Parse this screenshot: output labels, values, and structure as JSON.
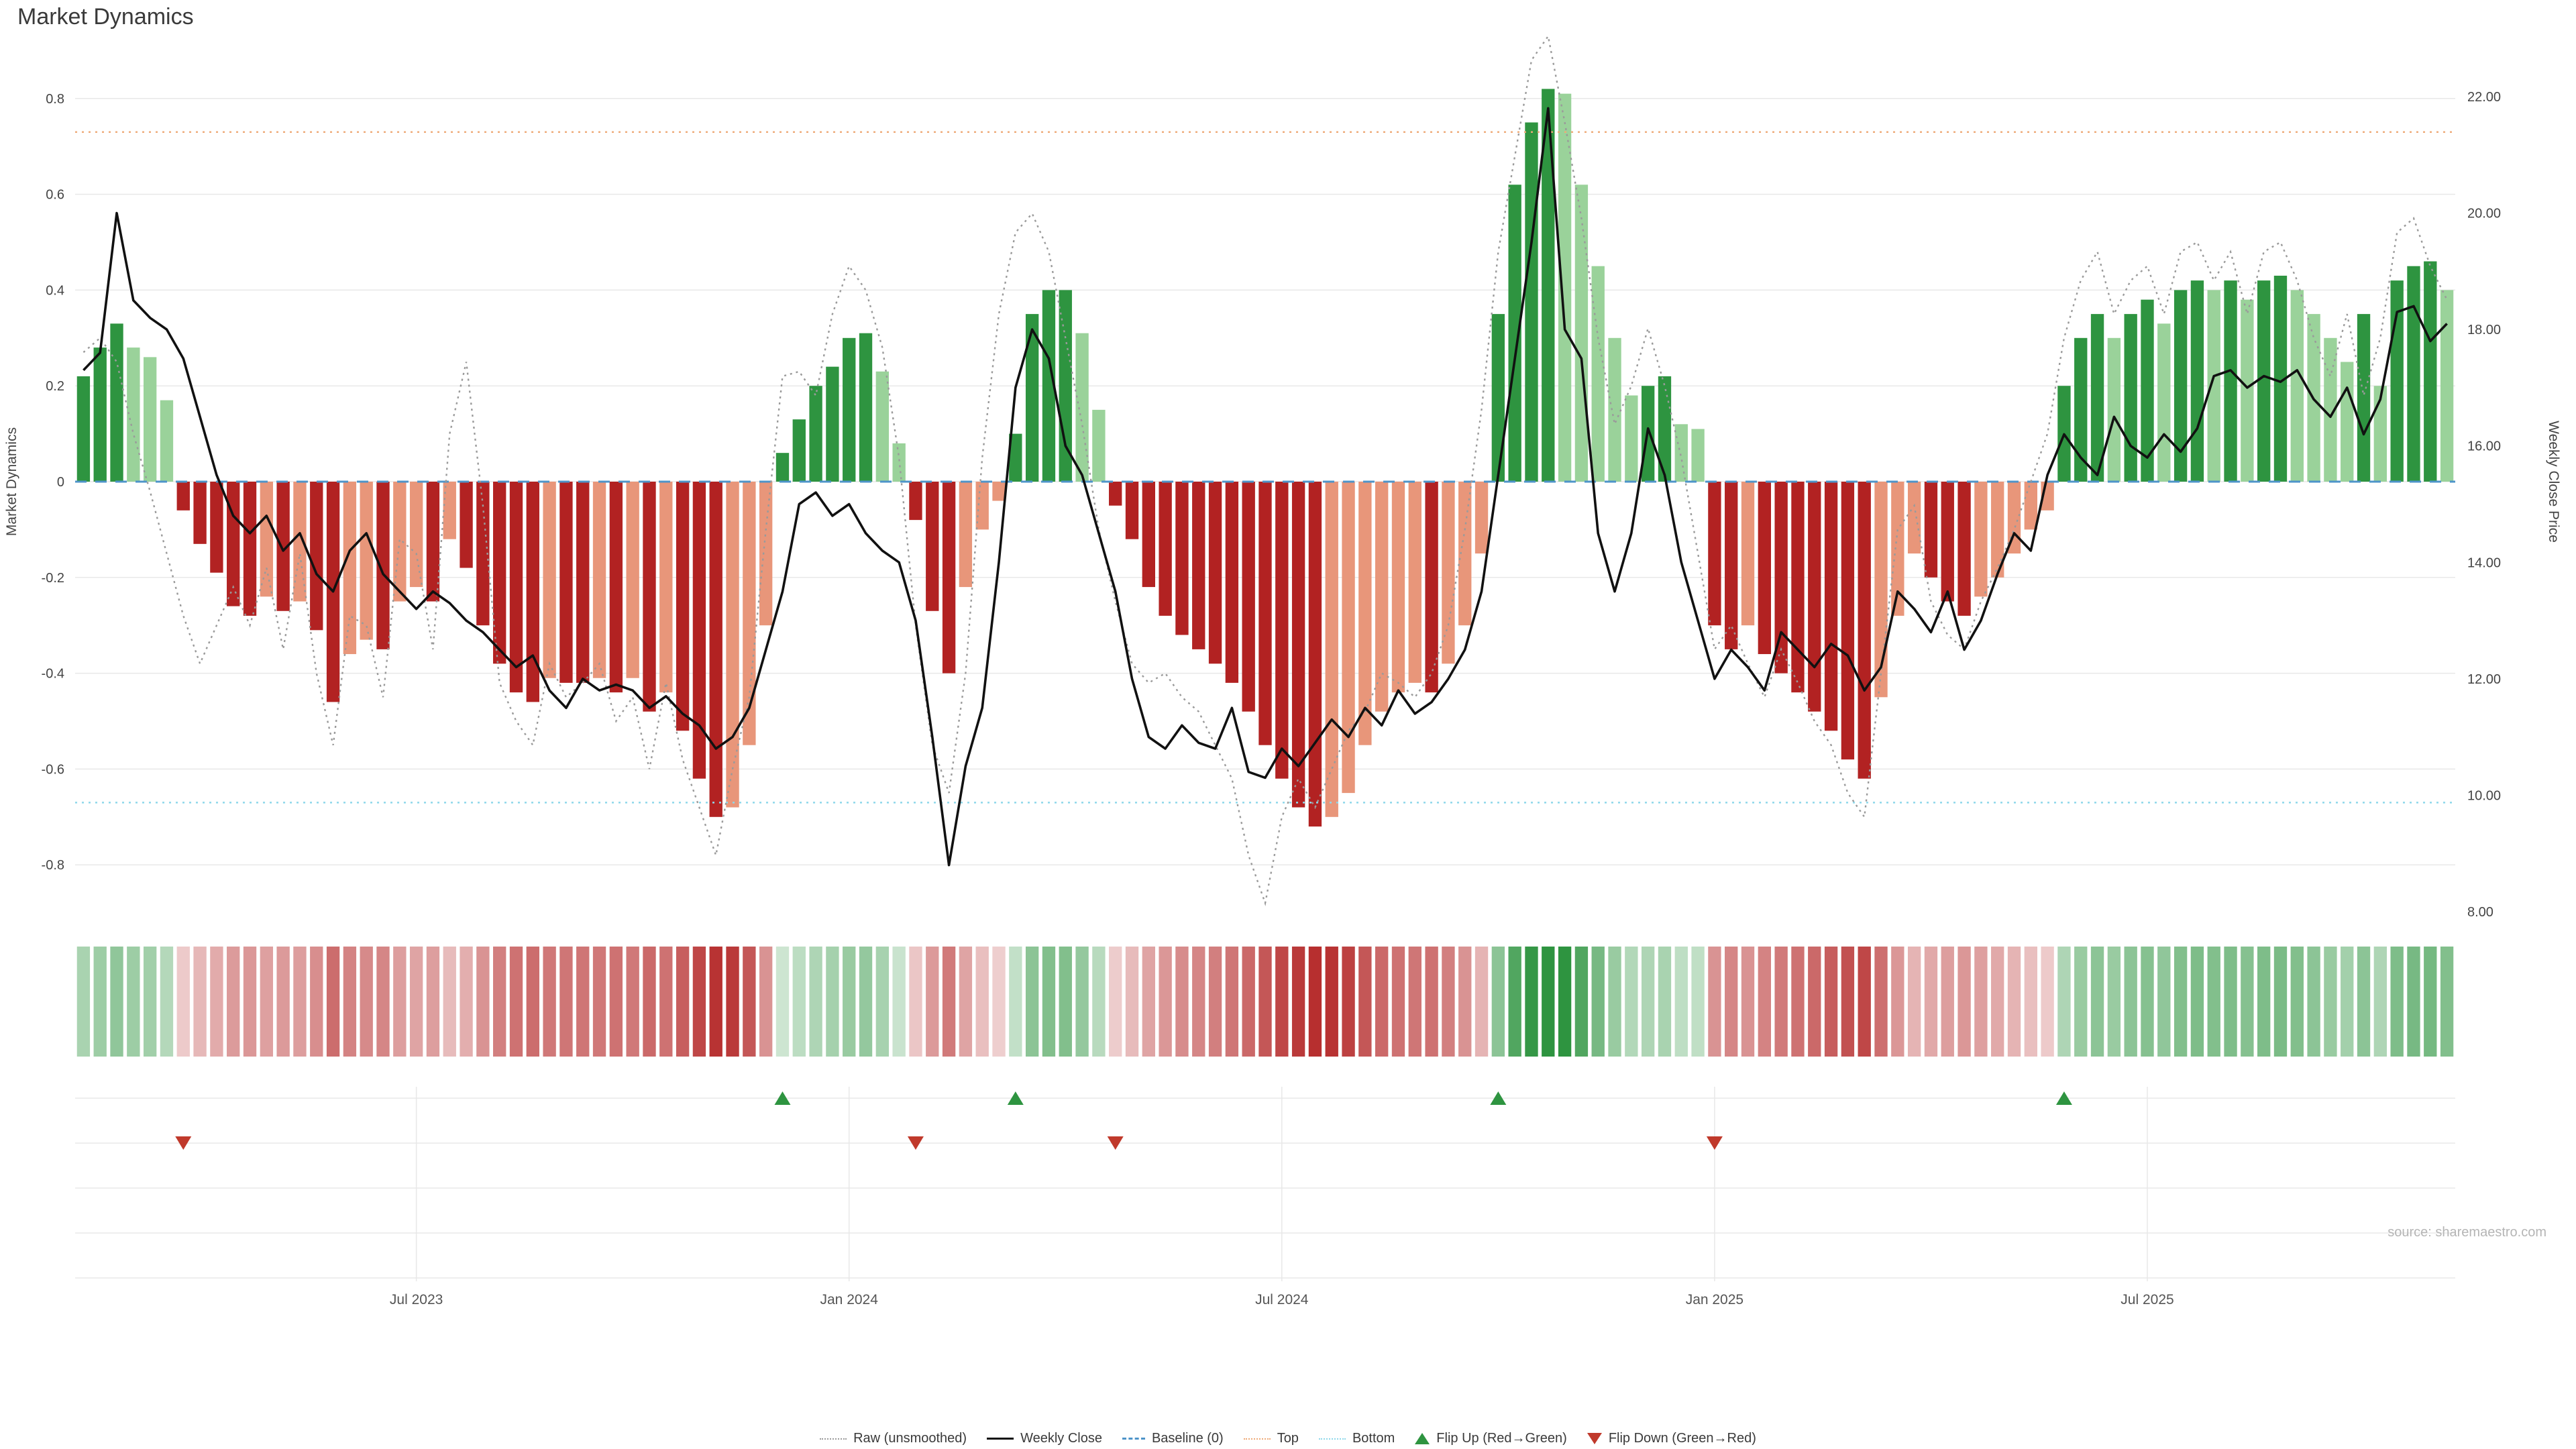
{
  "page": {
    "title": "Market Dynamics",
    "source": "source: sharemaestro.com"
  },
  "colors": {
    "green_dark": "#2e9440",
    "green_light": "#9ad29a",
    "red_dark": "#b22222",
    "red_light": "#e8967a",
    "close": "#111111",
    "raw": "#9a9a9a",
    "baseline": "#4e94c9",
    "top": "#eeaa77",
    "bottom": "#8ed8ea",
    "grid": "#e8e8e8",
    "flip_up": "#2e9440",
    "flip_down": "#c0392b"
  },
  "legend": {
    "items": [
      {
        "label": "Raw (unsmoothed)"
      },
      {
        "label": "Weekly Close"
      },
      {
        "label": "Baseline (0)"
      },
      {
        "label": "Top"
      },
      {
        "label": "Bottom"
      },
      {
        "label": "Flip Up (Red→Green)"
      },
      {
        "label": "Flip Down (Green→Red)"
      }
    ]
  },
  "chart_data": {
    "type": "bar+line",
    "title": "Market Dynamics",
    "grid": "horizontal",
    "left_axis": {
      "title": "Market Dynamics",
      "ticks": [
        "0.8",
        "0.6",
        "0.4",
        "0.2",
        "0",
        "-0.2",
        "-0.4",
        "-0.6",
        "-0.8"
      ],
      "range": [
        -0.9,
        0.9
      ]
    },
    "right_axis": {
      "title": "Weekly Close Price",
      "ticks": [
        "22.00",
        "20.00",
        "18.00",
        "16.00",
        "14.00",
        "12.00",
        "10.00",
        "8.00"
      ],
      "range": [
        8,
        22.5
      ]
    },
    "x_ticks": [
      {
        "label": "Jul 2023",
        "week": 20
      },
      {
        "label": "Jan 2024",
        "week": 46
      },
      {
        "label": "Jul 2024",
        "week": 72
      },
      {
        "label": "Jan 2025",
        "week": 98
      },
      {
        "label": "Jul 2025",
        "week": 124
      }
    ],
    "reference_lines": {
      "baseline": 0,
      "top": 0.73,
      "bottom": -0.67
    },
    "series": [
      {
        "name": "Market Dynamics",
        "type": "bar",
        "axis": "left",
        "values": [
          0.22,
          0.28,
          0.33,
          0.28,
          0.26,
          0.17,
          -0.06,
          -0.13,
          -0.19,
          -0.26,
          -0.28,
          -0.24,
          -0.27,
          -0.25,
          -0.31,
          -0.46,
          -0.36,
          -0.33,
          -0.35,
          -0.25,
          -0.22,
          -0.25,
          -0.12,
          -0.18,
          -0.3,
          -0.38,
          -0.44,
          -0.46,
          -0.41,
          -0.42,
          -0.42,
          -0.41,
          -0.44,
          -0.41,
          -0.48,
          -0.44,
          -0.52,
          -0.62,
          -0.7,
          -0.68,
          -0.55,
          -0.3,
          0.06,
          0.13,
          0.2,
          0.24,
          0.3,
          0.31,
          0.23,
          0.08,
          -0.08,
          -0.27,
          -0.4,
          -0.22,
          -0.1,
          -0.04,
          0.1,
          0.35,
          0.4,
          0.4,
          0.31,
          0.15,
          -0.05,
          -0.12,
          -0.22,
          -0.28,
          -0.32,
          -0.35,
          -0.38,
          -0.42,
          -0.48,
          -0.55,
          -0.62,
          -0.68,
          -0.72,
          -0.7,
          -0.65,
          -0.55,
          -0.48,
          -0.44,
          -0.42,
          -0.44,
          -0.38,
          -0.3,
          -0.15,
          0.35,
          0.62,
          0.75,
          0.82,
          0.81,
          0.62,
          0.45,
          0.3,
          0.18,
          0.2,
          0.22,
          0.12,
          0.11,
          -0.3,
          -0.35,
          -0.3,
          -0.36,
          -0.4,
          -0.44,
          -0.48,
          -0.52,
          -0.58,
          -0.62,
          -0.45,
          -0.28,
          -0.15,
          -0.2,
          -0.25,
          -0.28,
          -0.24,
          -0.2,
          -0.15,
          -0.1,
          -0.06,
          0.2,
          0.3,
          0.35,
          0.3,
          0.35,
          0.38,
          0.33,
          0.4,
          0.42,
          0.4,
          0.42,
          0.38,
          0.42,
          0.43,
          0.4,
          0.35,
          0.3,
          0.25,
          0.35,
          0.2,
          0.42,
          0.45,
          0.46,
          0.4
        ]
      },
      {
        "name": "Raw (unsmoothed)",
        "type": "line",
        "axis": "left",
        "values": [
          0.27,
          0.3,
          0.25,
          0.1,
          -0.02,
          -0.15,
          -0.28,
          -0.38,
          -0.3,
          -0.22,
          -0.3,
          -0.18,
          -0.35,
          -0.15,
          -0.4,
          -0.55,
          -0.28,
          -0.3,
          -0.45,
          -0.12,
          -0.15,
          -0.35,
          0.1,
          0.25,
          -0.05,
          -0.42,
          -0.5,
          -0.55,
          -0.38,
          -0.45,
          -0.42,
          -0.38,
          -0.5,
          -0.45,
          -0.6,
          -0.42,
          -0.58,
          -0.68,
          -0.78,
          -0.6,
          -0.45,
          -0.1,
          0.22,
          0.23,
          0.18,
          0.35,
          0.45,
          0.4,
          0.28,
          0.05,
          -0.3,
          -0.55,
          -0.65,
          -0.4,
          0.05,
          0.35,
          0.52,
          0.56,
          0.48,
          0.3,
          0.12,
          -0.1,
          -0.25,
          -0.38,
          -0.42,
          -0.4,
          -0.45,
          -0.48,
          -0.55,
          -0.62,
          -0.78,
          -0.88,
          -0.7,
          -0.62,
          -0.68,
          -0.6,
          -0.52,
          -0.48,
          -0.4,
          -0.42,
          -0.45,
          -0.4,
          -0.3,
          -0.1,
          0.15,
          0.48,
          0.68,
          0.88,
          0.93,
          0.75,
          0.55,
          0.3,
          0.12,
          0.2,
          0.32,
          0.2,
          0.05,
          -0.15,
          -0.35,
          -0.3,
          -0.38,
          -0.45,
          -0.35,
          -0.42,
          -0.5,
          -0.55,
          -0.65,
          -0.7,
          -0.4,
          -0.1,
          -0.05,
          -0.25,
          -0.32,
          -0.35,
          -0.25,
          -0.18,
          -0.1,
          0.0,
          0.1,
          0.3,
          0.42,
          0.48,
          0.35,
          0.42,
          0.45,
          0.35,
          0.48,
          0.5,
          0.42,
          0.48,
          0.35,
          0.48,
          0.5,
          0.42,
          0.3,
          0.22,
          0.35,
          0.18,
          0.3,
          0.52,
          0.55,
          0.45,
          0.38
        ]
      },
      {
        "name": "Weekly Close",
        "type": "line",
        "axis": "right",
        "values": [
          17.3,
          17.6,
          20.0,
          18.5,
          18.2,
          18.0,
          17.5,
          16.5,
          15.5,
          14.8,
          14.5,
          14.8,
          14.2,
          14.5,
          13.8,
          13.5,
          14.2,
          14.5,
          13.8,
          13.5,
          13.2,
          13.5,
          13.3,
          13.0,
          12.8,
          12.5,
          12.2,
          12.4,
          11.8,
          11.5,
          12.0,
          11.8,
          11.9,
          11.8,
          11.5,
          11.7,
          11.4,
          11.2,
          10.8,
          11.0,
          11.5,
          12.5,
          13.5,
          15.0,
          15.2,
          14.8,
          15.0,
          14.5,
          14.2,
          14.0,
          13.0,
          11.0,
          8.8,
          10.5,
          11.5,
          14.0,
          17.0,
          18.0,
          17.5,
          16.0,
          15.5,
          14.5,
          13.5,
          12.0,
          11.0,
          10.8,
          11.2,
          10.9,
          10.8,
          11.5,
          10.4,
          10.3,
          10.8,
          10.5,
          10.9,
          11.3,
          11.0,
          11.5,
          11.2,
          11.8,
          11.4,
          11.6,
          12.0,
          12.5,
          13.5,
          15.5,
          17.5,
          19.5,
          21.8,
          18.0,
          17.5,
          14.5,
          13.5,
          14.5,
          16.3,
          15.5,
          14.0,
          13.0,
          12.0,
          12.5,
          12.2,
          11.8,
          12.8,
          12.5,
          12.2,
          12.6,
          12.4,
          11.8,
          12.2,
          13.5,
          13.2,
          12.8,
          13.5,
          12.5,
          13.0,
          13.8,
          14.5,
          14.2,
          15.5,
          16.2,
          15.8,
          15.5,
          16.5,
          16.0,
          15.8,
          16.2,
          15.9,
          16.3,
          17.2,
          17.3,
          17.0,
          17.2,
          17.1,
          17.3,
          16.8,
          16.5,
          17.0,
          16.2,
          16.8,
          18.3,
          18.4,
          17.8,
          18.1
        ]
      }
    ],
    "markers": {
      "flip_up_label": "Flip Up (Red→Green)",
      "flip_down_label": "Flip Down (Green→Red)",
      "flip_up_weeks": [
        42,
        56,
        85,
        119
      ],
      "flip_down_weeks": [
        6,
        50,
        62,
        98
      ]
    }
  }
}
